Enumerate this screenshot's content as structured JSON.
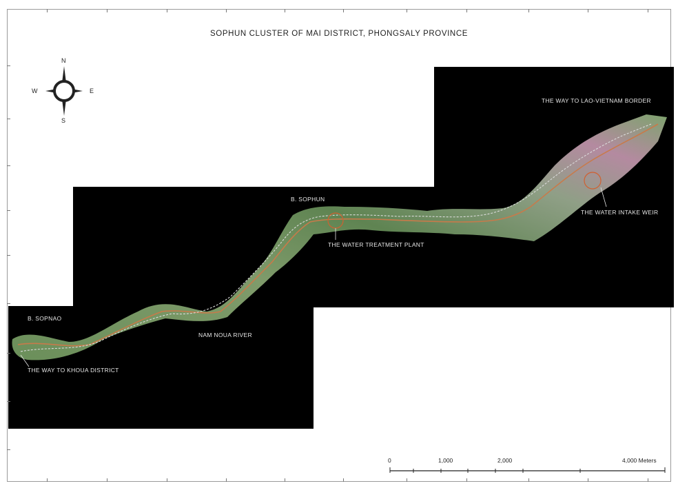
{
  "map": {
    "title": "SOPHUN CLUSTER OF MAI DISTRICT, PHONGSALY PROVINCE",
    "compass": {
      "north": "N",
      "south": "S",
      "east": "E",
      "west": "W"
    },
    "labels": {
      "b_sophun": "B. SOPHUN",
      "b_sopnao": "B. SOPNAO",
      "water_treatment_plant": "THE WATER TREATMENT PLANT",
      "water_intake_weir": "THE WATER INTAKE WEIR",
      "way_to_border": "THE WAY TO LAO-VIETNAM BORDER",
      "way_to_khoua": "THE WAY TO KHOUA DISTRICT",
      "nam_noua_river": "NAM NOUA RIVER"
    },
    "scale": {
      "zero": "0",
      "one_thousand": "1,000",
      "two_thousand": "2,000",
      "four_thousand": "4,000 Meters"
    },
    "colors": {
      "background": "#000000",
      "river": "#c87a4a",
      "terrain_green": "#6b8f5a",
      "terrain_pink": "#b48aa0",
      "marker_circle": "#d06030"
    }
  }
}
